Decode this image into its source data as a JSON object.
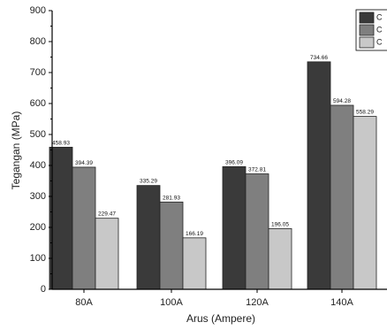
{
  "chart_data": {
    "type": "bar",
    "title": "",
    "xlabel": "Arus (Ampere)",
    "ylabel": "Tegangan (MPa)",
    "ylim": [
      0,
      900
    ],
    "yticks": [
      0,
      100,
      200,
      300,
      400,
      500,
      600,
      700,
      800,
      900
    ],
    "categories": [
      "80A",
      "100A",
      "120A",
      "140A"
    ],
    "series": [
      {
        "values": [
          458.93,
          335.29,
          396.09,
          734.66
        ],
        "labels": [
          "458.93",
          "335.29",
          "396.09",
          "734.66"
        ],
        "color": "#3a3a3a"
      },
      {
        "values": [
          394.39,
          281.93,
          372.81,
          594.28
        ],
        "labels": [
          "394.39",
          "281.93",
          "372.81",
          "594.28"
        ],
        "color": "#7f7f7f"
      },
      {
        "values": [
          229.47,
          166.19,
          196.05,
          558.29
        ],
        "labels": [
          "229.47",
          "166.19",
          "196.05",
          "558.29"
        ],
        "color": "#c8c8c8"
      }
    ],
    "legend": {
      "position": "top-right",
      "entries": [
        "C",
        "C",
        "C"
      ]
    },
    "grid": false
  }
}
